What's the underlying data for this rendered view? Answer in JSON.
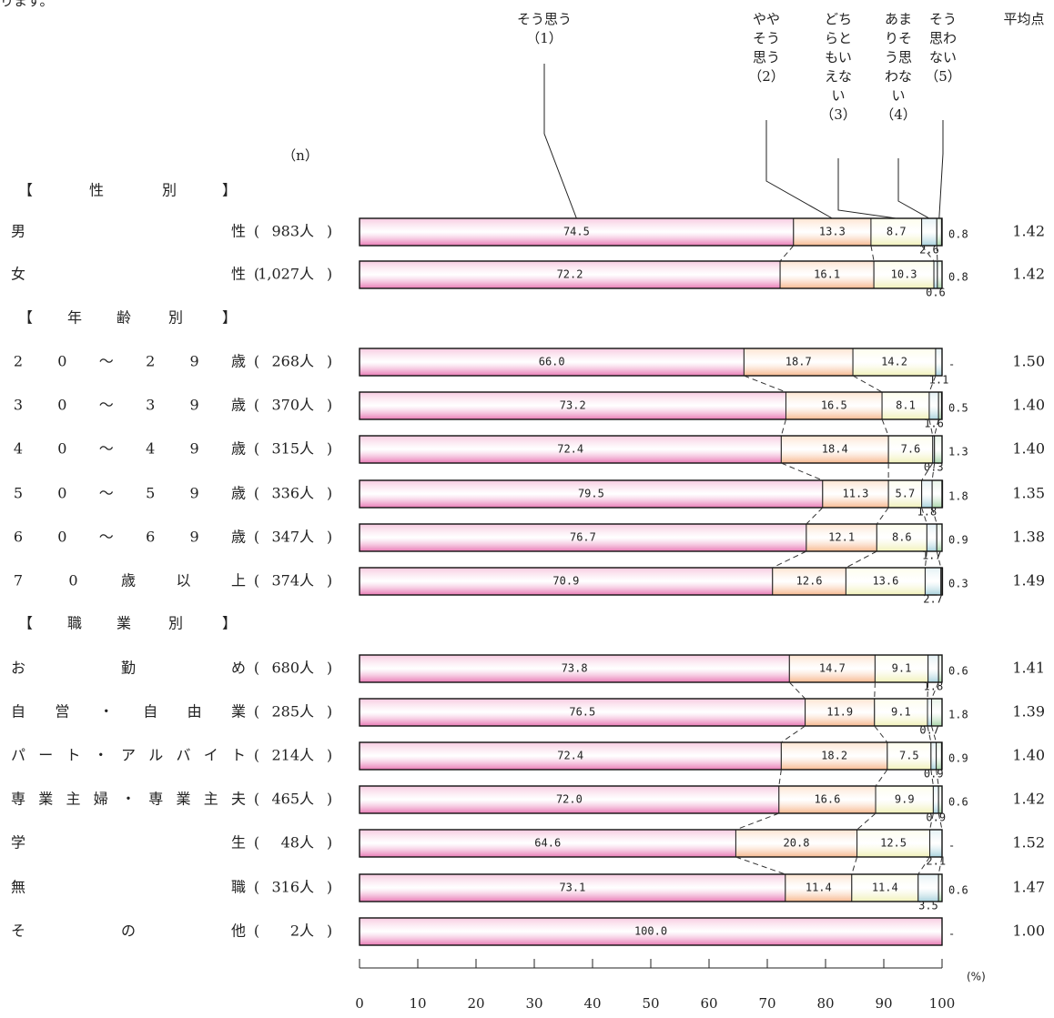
{
  "header_fragment": "ります。",
  "n_label": "（n）",
  "avg_label": "平均点",
  "unit_label": "(%)",
  "legend": [
    {
      "lines": [
        "そう思う",
        "（1）"
      ]
    },
    {
      "lines": [
        "やや",
        "そう",
        "思う",
        "（2）"
      ]
    },
    {
      "lines": [
        "どち",
        "らと",
        "もい",
        "えな",
        "い",
        "（3）"
      ]
    },
    {
      "lines": [
        "あま",
        "りそ",
        "う思",
        "わな",
        "い",
        "（4）"
      ]
    },
    {
      "lines": [
        "そう",
        "思わ",
        "ない",
        "（5）"
      ]
    }
  ],
  "chart_data": {
    "type": "bar",
    "orientation": "horizontal-stacked-100",
    "xlim": [
      0,
      100
    ],
    "x_ticks": [
      "0",
      "10",
      "20",
      "30",
      "40",
      "50",
      "60",
      "70",
      "80",
      "90",
      "100"
    ],
    "series_colors": [
      "#f4b6d6",
      "#fcd2b4",
      "#fbfbd6",
      "#cfe6ea",
      "#d6ecd6"
    ],
    "groups": [
      {
        "header": [
          "【",
          "性",
          "別",
          "】"
        ],
        "rows": [
          {
            "label": "男性",
            "n": "983人",
            "values": [
              "74.5",
              "13.3",
              "8.7",
              "2.6",
              "0.8"
            ],
            "avg": "1.42"
          },
          {
            "label": "女性",
            "n": "1,027人",
            "values": [
              "72.2",
              "16.1",
              "10.3",
              "0.6",
              "0.8"
            ],
            "avg": "1.42"
          }
        ]
      },
      {
        "header": [
          "【",
          "年",
          "齢",
          "別",
          "】"
        ],
        "rows": [
          {
            "label": "20～29歳",
            "n": "268人",
            "values": [
              "66.0",
              "18.7",
              "14.2",
              "1.1",
              "-"
            ],
            "avg": "1.50"
          },
          {
            "label": "30～39歳",
            "n": "370人",
            "values": [
              "73.2",
              "16.5",
              "8.1",
              "1.6",
              "0.5"
            ],
            "avg": "1.40"
          },
          {
            "label": "40～49歳",
            "n": "315人",
            "values": [
              "72.4",
              "18.4",
              "7.6",
              "0.3",
              "1.3"
            ],
            "avg": "1.40"
          },
          {
            "label": "50～59歳",
            "n": "336人",
            "values": [
              "79.5",
              "11.3",
              "5.7",
              "1.8",
              "1.8"
            ],
            "avg": "1.35"
          },
          {
            "label": "60～69歳",
            "n": "347人",
            "values": [
              "76.7",
              "12.1",
              "8.6",
              "1.7",
              "0.9"
            ],
            "avg": "1.38"
          },
          {
            "label": "70歳以上",
            "n": "374人",
            "values": [
              "70.9",
              "12.6",
              "13.6",
              "2.7",
              "0.3"
            ],
            "avg": "1.49"
          }
        ]
      },
      {
        "header": [
          "【",
          "職",
          "業",
          "別",
          "】"
        ],
        "rows": [
          {
            "label": "お勤め",
            "n": "680人",
            "values": [
              "73.8",
              "14.7",
              "9.1",
              "1.8",
              "0.6"
            ],
            "avg": "1.41"
          },
          {
            "label": "自営・自由業",
            "n": "285人",
            "values": [
              "76.5",
              "11.9",
              "9.1",
              "0.7",
              "1.8"
            ],
            "avg": "1.39"
          },
          {
            "label": "パート・アルバイト",
            "n": "214人",
            "values": [
              "72.4",
              "18.2",
              "7.5",
              "0.9",
              "0.9"
            ],
            "avg": "1.40"
          },
          {
            "label": "専業主婦・専業主夫",
            "n": "465人",
            "values": [
              "72.0",
              "16.6",
              "9.9",
              "0.9",
              "0.6"
            ],
            "avg": "1.42"
          },
          {
            "label": "学生",
            "n": "48人",
            "values": [
              "64.6",
              "20.8",
              "12.5",
              "2.1",
              "-"
            ],
            "avg": "1.52"
          },
          {
            "label": "無職",
            "n": "316人",
            "values": [
              "73.1",
              "11.4",
              "11.4",
              "3.5",
              "0.6"
            ],
            "avg": "1.47"
          },
          {
            "label": "その他",
            "n": "2人",
            "values": [
              "100.0",
              "-",
              "-",
              "-",
              "-"
            ],
            "avg": "1.00"
          }
        ]
      }
    ]
  }
}
